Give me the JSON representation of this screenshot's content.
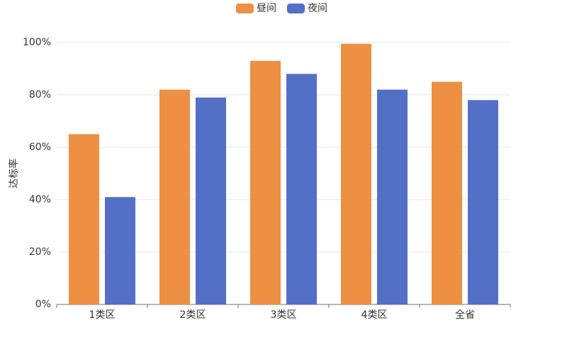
{
  "chart_data": {
    "type": "bar",
    "y_label": "达标率",
    "categories": [
      "1类区",
      "2类区",
      "3类区",
      "4类区",
      "全省"
    ],
    "series": [
      {
        "name": "昼间",
        "color": "#ee9044",
        "values": [
          65,
          82,
          93,
          99.5,
          85
        ]
      },
      {
        "name": "夜间",
        "color": "#5470c6",
        "values": [
          41,
          79,
          88,
          82,
          78
        ]
      }
    ],
    "ylim": [
      0,
      100
    ],
    "yticks": [
      {
        "value": 0,
        "label": "0%"
      },
      {
        "value": 20,
        "label": "20%"
      },
      {
        "value": 40,
        "label": "40%"
      },
      {
        "value": 60,
        "label": "60%"
      },
      {
        "value": 80,
        "label": "80%"
      },
      {
        "value": 100,
        "label": "100%"
      }
    ],
    "grid": true,
    "legend": "top"
  }
}
